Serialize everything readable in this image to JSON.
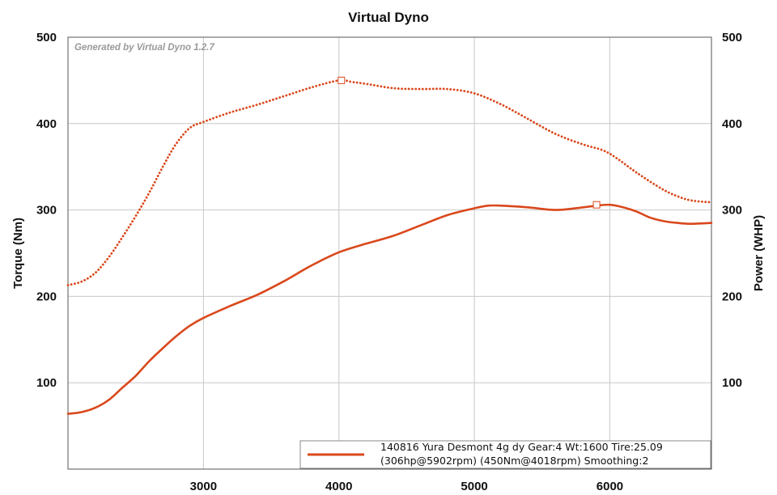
{
  "chart_data": {
    "type": "line",
    "title": "Virtual Dyno",
    "watermark": "Generated by Virtual Dyno 1.2.7",
    "xlabel": "",
    "ylabel_left": "Torque (Nm)",
    "ylabel_right": "Power (WHP)",
    "xlim": [
      2000,
      6750
    ],
    "ylim_left": [
      0,
      500
    ],
    "ylim_right": [
      0,
      500
    ],
    "x_ticks": [
      "3000",
      "4000",
      "5000",
      "6000"
    ],
    "y_ticks_left": [
      "100",
      "200",
      "300",
      "400",
      "500"
    ],
    "y_ticks_right": [
      "100",
      "200",
      "300",
      "400",
      "500"
    ],
    "grid": true,
    "legend": {
      "position": "bottom-right",
      "line1": "140816 Yura Desmont 4g dy Gear:4 Wt:1600 Tire:25.09",
      "line2": "(306hp@5902rpm) (450Nm@4018rpm) Smoothing:2"
    },
    "series": [
      {
        "axis": "left",
        "style": "dotted",
        "color": "#d9481c",
        "peak": {
          "x": 4018,
          "y": 450
        },
        "points": [
          [
            2000,
            213
          ],
          [
            2100,
            217
          ],
          [
            2200,
            227
          ],
          [
            2300,
            245
          ],
          [
            2400,
            268
          ],
          [
            2500,
            293
          ],
          [
            2600,
            320
          ],
          [
            2700,
            350
          ],
          [
            2800,
            377
          ],
          [
            2900,
            395
          ],
          [
            3000,
            402
          ],
          [
            3200,
            413
          ],
          [
            3400,
            422
          ],
          [
            3600,
            432
          ],
          [
            3800,
            442
          ],
          [
            4000,
            450
          ],
          [
            4100,
            448
          ],
          [
            4200,
            446
          ],
          [
            4400,
            441
          ],
          [
            4600,
            440
          ],
          [
            4800,
            440
          ],
          [
            5000,
            435
          ],
          [
            5200,
            422
          ],
          [
            5400,
            405
          ],
          [
            5600,
            388
          ],
          [
            5800,
            376
          ],
          [
            5950,
            369
          ],
          [
            6050,
            360
          ],
          [
            6200,
            343
          ],
          [
            6400,
            323
          ],
          [
            6550,
            313
          ],
          [
            6650,
            310
          ],
          [
            6750,
            309
          ]
        ]
      },
      {
        "axis": "right",
        "style": "solid",
        "color": "#d9481c",
        "peak": {
          "x": 5902,
          "y": 306
        },
        "points": [
          [
            2000,
            64
          ],
          [
            2100,
            66
          ],
          [
            2200,
            71
          ],
          [
            2300,
            80
          ],
          [
            2400,
            94
          ],
          [
            2500,
            108
          ],
          [
            2600,
            125
          ],
          [
            2700,
            140
          ],
          [
            2800,
            154
          ],
          [
            2900,
            166
          ],
          [
            3000,
            175
          ],
          [
            3200,
            189
          ],
          [
            3400,
            202
          ],
          [
            3600,
            218
          ],
          [
            3800,
            236
          ],
          [
            4000,
            251
          ],
          [
            4200,
            261
          ],
          [
            4400,
            270
          ],
          [
            4600,
            282
          ],
          [
            4800,
            294
          ],
          [
            5000,
            302
          ],
          [
            5100,
            305
          ],
          [
            5200,
            305
          ],
          [
            5400,
            303
          ],
          [
            5600,
            300
          ],
          [
            5800,
            303
          ],
          [
            5900,
            305
          ],
          [
            6000,
            306
          ],
          [
            6100,
            303
          ],
          [
            6200,
            298
          ],
          [
            6300,
            291
          ],
          [
            6400,
            287
          ],
          [
            6500,
            285
          ],
          [
            6600,
            284
          ],
          [
            6750,
            285
          ]
        ]
      }
    ]
  },
  "colors": {
    "curve": "#d9481c",
    "grid": "#c8c8c8",
    "frame": "#555555"
  }
}
